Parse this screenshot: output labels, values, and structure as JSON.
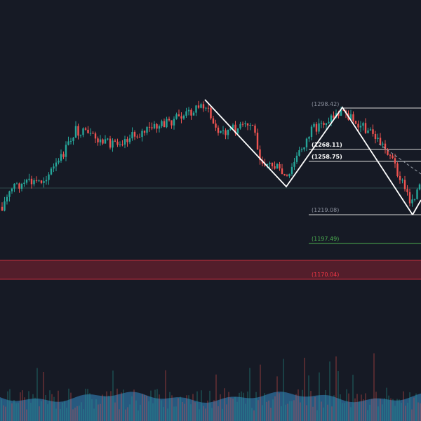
{
  "colors": {
    "background": "#161a25",
    "up_candle": "#26a69a",
    "down_candle": "#ef5350",
    "pattern_line": "#ffffff",
    "level_line": "#d8d8d8",
    "level_label": "#8a8f9c",
    "level_label_bold": "#ffffff",
    "target_green": "#4caf50",
    "stop_red": "#f23645",
    "stop_zone_fill": "#5a1f2c",
    "baseline": "#2f4a4a",
    "volume_area": "#2d6f9e"
  },
  "levels": [
    {
      "label": "(1298.42)",
      "bold": false,
      "kind": "level"
    },
    {
      "label": "(1268.11)",
      "bold": true,
      "kind": "level"
    },
    {
      "label": "(1258.75)",
      "bold": true,
      "kind": "level"
    },
    {
      "label": "(1219.08)",
      "bold": false,
      "kind": "level"
    },
    {
      "label": "(1197.49)",
      "bold": false,
      "kind": "target"
    },
    {
      "label": "(1170.04)",
      "bold": false,
      "kind": "stop"
    }
  ],
  "chart_data": {
    "type": "candlestick",
    "price_scale_visible": false,
    "time_scale_visible": false,
    "pattern": "zigzag swing lines with horizontal price levels",
    "volume_pane": true,
    "horizontal_levels": [
      1298.42,
      1268.11,
      1258.75,
      1219.08,
      1197.49,
      1170.04
    ]
  }
}
